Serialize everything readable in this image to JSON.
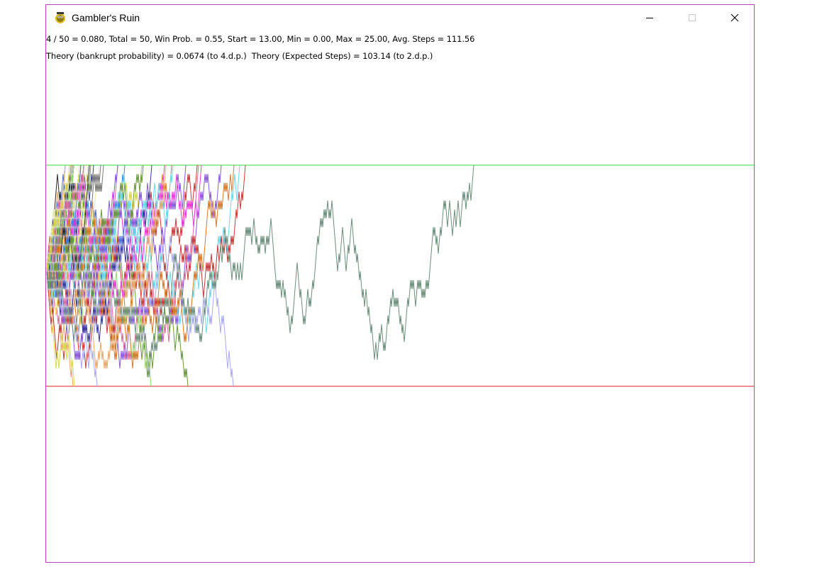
{
  "window": {
    "title": "Gambler's Ruin",
    "icon": "pygame-snake-icon",
    "controls": [
      "minimize-icon",
      "maximize-icon",
      "close-icon"
    ]
  },
  "stats": {
    "line1": "4 / 50 = 0.080, Total = 50, Win Prob. = 0.55, Start = 13.00, Min = 0.00, Max = 25.00, Avg. Steps = 111.56",
    "line2": "Theory (bankrupt probability) = 0.0674 (to 4.d.p.)  Theory (Expected Steps) = 103.14 (to 2.d.p.)"
  },
  "simulation": {
    "total_runs": 50,
    "bankrupt_runs": 4,
    "win_probability": 0.55,
    "start": 13,
    "min": 0,
    "max": 25,
    "avg_steps": 111.56
  },
  "colors": {
    "max_line": "#33dd33",
    "min_line": "#dd2222",
    "window_border": "#c23fb5",
    "highlight_path": "#6d8f7d",
    "path_palette": [
      "#e8e86a",
      "#e83ad8",
      "#7a7a7a",
      "#4a6cd8",
      "#d87a2a",
      "#6ad8e8",
      "#9ad86a",
      "#d86a9a",
      "#2a2a2a",
      "#8a5ad8",
      "#e8a86a",
      "#6a9a3a",
      "#d8d84a",
      "#3a8ad8",
      "#c83a3a",
      "#aaaaee",
      "#3a3a9a",
      "#e8e8b0"
    ]
  }
}
